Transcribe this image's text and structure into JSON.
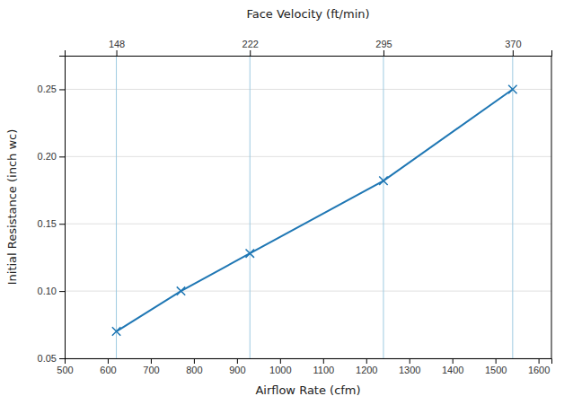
{
  "chart_data": {
    "type": "line",
    "title": "Face Velocity (ft/min)",
    "x_label": "Airflow Rate (cfm)",
    "y_label": "Initial Resistance (inch wc)",
    "x": [
      620,
      770,
      930,
      1240,
      1540
    ],
    "values": [
      0.07,
      0.1,
      0.128,
      0.182,
      0.25
    ],
    "marker": "x",
    "xlim": [
      500,
      1630
    ],
    "ylim": [
      0.05,
      0.275
    ],
    "xticks": [
      500,
      600,
      700,
      800,
      900,
      1000,
      1100,
      1200,
      1300,
      1400,
      1500,
      1600
    ],
    "yticks": [
      0.05,
      {
        "value": 0.1,
        "label": "0.10"
      },
      0.15,
      {
        "value": 0.2,
        "label": "0.20"
      },
      0.25
    ],
    "x2lim": [
      500,
      1630
    ],
    "x2ticks": [
      {
        "value": 620,
        "label": "148"
      },
      {
        "value": 930,
        "label": "222"
      },
      {
        "value": 1240,
        "label": "295"
      },
      {
        "value": 1540,
        "label": "370"
      }
    ],
    "grid": true
  }
}
